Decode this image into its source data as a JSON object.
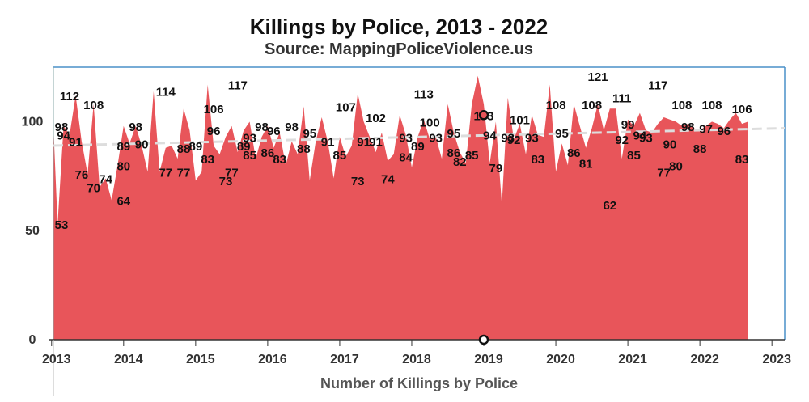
{
  "chart_data": {
    "type": "area",
    "title": "Killings by Police, 2013 - 2022",
    "subtitle": "Source: MappingPoliceViolence.us",
    "xlabel": "Number of Killings by Police",
    "ylabel": "",
    "x_ticks": [
      "2013",
      "2014",
      "2015",
      "2016",
      "2017",
      "2018",
      "2019",
      "2020",
      "2021",
      "2022",
      "2023"
    ],
    "y_ticks": [
      0,
      50,
      100
    ],
    "ylim": [
      0,
      125
    ],
    "xlim": [
      "2013-01",
      "2023-03"
    ],
    "grid": false,
    "trendline": {
      "style": "dashed",
      "color": "#dddddd",
      "start": 89,
      "end": 97
    },
    "series": [
      {
        "color": "#e8555a",
        "x": [
          "2013-01",
          "2013-02",
          "2013-03",
          "2013-04",
          "2013-05",
          "2013-06",
          "2013-07",
          "2013-08",
          "2013-09",
          "2013-10",
          "2013-11",
          "2013-12",
          "2014-01",
          "2014-02",
          "2014-03",
          "2014-04",
          "2014-05",
          "2014-06",
          "2014-07",
          "2014-08",
          "2014-09",
          "2014-10",
          "2014-11",
          "2014-12",
          "2015-01",
          "2015-02",
          "2015-03",
          "2015-04",
          "2015-05",
          "2015-06",
          "2015-07",
          "2015-08",
          "2015-09",
          "2015-10",
          "2015-11",
          "2015-12",
          "2016-01",
          "2016-02",
          "2016-03",
          "2016-04",
          "2016-05",
          "2016-06",
          "2016-07",
          "2016-08",
          "2016-09",
          "2016-10",
          "2016-11",
          "2016-12",
          "2017-01",
          "2017-02",
          "2017-03",
          "2017-04",
          "2017-05",
          "2017-06",
          "2017-07",
          "2017-08",
          "2017-09",
          "2017-10",
          "2017-11",
          "2017-12",
          "2018-01",
          "2018-02",
          "2018-03",
          "2018-04",
          "2018-05",
          "2018-06",
          "2018-07",
          "2018-08",
          "2018-09",
          "2018-10",
          "2018-11",
          "2018-12",
          "2019-01",
          "2019-02",
          "2019-03",
          "2019-04",
          "2019-05",
          "2019-06",
          "2019-07",
          "2019-08",
          "2019-09",
          "2019-10",
          "2019-11",
          "2019-12",
          "2020-01",
          "2020-02",
          "2020-03",
          "2020-04",
          "2020-05",
          "2020-06",
          "2020-07",
          "2020-08",
          "2020-09",
          "2020-10",
          "2020-11",
          "2020-12",
          "2021-01",
          "2021-02",
          "2021-03",
          "2021-04",
          "2021-05",
          "2021-06",
          "2021-07",
          "2021-08",
          "2021-09",
          "2021-10",
          "2021-11",
          "2021-12",
          "2022-01",
          "2022-02",
          "2022-03",
          "2022-04",
          "2022-05",
          "2022-06",
          "2022-07",
          "2022-08",
          "2022-09"
        ],
        "values": [
          98,
          53,
          98,
          94,
          112,
          91,
          76,
          108,
          70,
          74,
          64,
          80,
          98,
          90,
          98,
          89,
          77,
          114,
          77,
          88,
          89,
          83,
          106,
          96,
          73,
          77,
          117,
          89,
          85,
          93,
          98,
          86,
          96,
          100,
          83,
          93,
          98,
          88,
          95,
          80,
          91,
          85,
          107,
          73,
          91,
          102,
          91,
          74,
          93,
          84,
          89,
          113,
          100,
          93,
          86,
          95,
          82,
          85,
          103,
          94,
          79,
          93,
          101,
          92,
          93,
          83,
          108,
          95,
          86,
          81,
          108,
          121,
          108,
          81,
          100,
          62,
          111,
          92,
          99,
          85,
          103,
          94,
          93,
          117,
          77,
          90,
          80,
          108,
          98,
          88,
          97,
          108,
          96,
          106,
          106,
          83,
          101,
          98,
          104,
          96,
          95,
          99,
          102,
          101,
          100,
          98,
          99,
          97,
          96,
          98,
          100,
          99,
          97,
          101,
          104,
          99,
          100
        ]
      }
    ],
    "data_labels": [
      {
        "x": "2013-01",
        "label": "53"
      },
      {
        "x": "2013-02",
        "label": "98"
      },
      {
        "x": "2013-03",
        "label": "94"
      },
      {
        "x": "2013-04",
        "label": "112"
      },
      {
        "x": "2013-05",
        "label": "91"
      },
      {
        "x": "2013-06",
        "label": "76"
      },
      {
        "x": "2013-08",
        "label": "108"
      },
      {
        "x": "2013-08",
        "label": "70"
      },
      {
        "x": "2013-10",
        "label": "74"
      },
      {
        "x": "2014-01",
        "label": "64"
      },
      {
        "x": "2014-01",
        "label": "80"
      },
      {
        "x": "2014-01",
        "label": "89"
      },
      {
        "x": "2014-03",
        "label": "98"
      },
      {
        "x": "2014-04",
        "label": "90"
      },
      {
        "x": "2014-08",
        "label": "114"
      },
      {
        "x": "2014-08",
        "label": "77"
      },
      {
        "x": "2014-11",
        "label": "88"
      },
      {
        "x": "2014-11",
        "label": "77"
      },
      {
        "x": "2015-01",
        "label": "89"
      },
      {
        "x": "2015-03",
        "label": "83"
      },
      {
        "x": "2015-04",
        "label": "106"
      },
      {
        "x": "2015-04",
        "label": "96"
      },
      {
        "x": "2015-06",
        "label": "73"
      },
      {
        "x": "2015-07",
        "label": "77"
      },
      {
        "x": "2015-08",
        "label": "117"
      },
      {
        "x": "2015-09",
        "label": "89"
      },
      {
        "x": "2015-10",
        "label": "93"
      },
      {
        "x": "2015-10",
        "label": "85"
      },
      {
        "x": "2015-12",
        "label": "98"
      },
      {
        "x": "2016-01",
        "label": "86"
      },
      {
        "x": "2016-02",
        "label": "96"
      },
      {
        "x": "2016-03",
        "label": "83"
      },
      {
        "x": "2016-05",
        "label": "98"
      },
      {
        "x": "2016-07",
        "label": "88"
      },
      {
        "x": "2016-08",
        "label": "95"
      },
      {
        "x": "2016-11",
        "label": "91"
      },
      {
        "x": "2017-01",
        "label": "85"
      },
      {
        "x": "2017-02",
        "label": "107"
      },
      {
        "x": "2017-04",
        "label": "73"
      },
      {
        "x": "2017-05",
        "label": "91"
      },
      {
        "x": "2017-07",
        "label": "91"
      },
      {
        "x": "2017-07",
        "label": "102"
      },
      {
        "x": "2017-09",
        "label": "74"
      },
      {
        "x": "2017-12",
        "label": "93"
      },
      {
        "x": "2017-12",
        "label": "84"
      },
      {
        "x": "2018-02",
        "label": "89"
      },
      {
        "x": "2018-03",
        "label": "113"
      },
      {
        "x": "2018-04",
        "label": "100"
      },
      {
        "x": "2018-05",
        "label": "93"
      },
      {
        "x": "2018-08",
        "label": "86"
      },
      {
        "x": "2018-08",
        "label": "95"
      },
      {
        "x": "2018-09",
        "label": "82"
      },
      {
        "x": "2018-11",
        "label": "85"
      },
      {
        "x": "2019-01",
        "label": "103"
      },
      {
        "x": "2019-02",
        "label": "94"
      },
      {
        "x": "2019-03",
        "label": "79"
      },
      {
        "x": "2019-05",
        "label": "93"
      },
      {
        "x": "2019-06",
        "label": "92"
      },
      {
        "x": "2019-07",
        "label": "101"
      },
      {
        "x": "2019-09",
        "label": "93"
      },
      {
        "x": "2019-10",
        "label": "83"
      },
      {
        "x": "2020-01",
        "label": "108"
      },
      {
        "x": "2020-02",
        "label": "95"
      },
      {
        "x": "2020-04",
        "label": "86"
      },
      {
        "x": "2020-06",
        "label": "81"
      },
      {
        "x": "2020-07",
        "label": "108"
      },
      {
        "x": "2020-08",
        "label": "121"
      },
      {
        "x": "2020-10",
        "label": "62"
      },
      {
        "x": "2020-12",
        "label": "111"
      },
      {
        "x": "2020-12",
        "label": "92"
      },
      {
        "x": "2021-01",
        "label": "99"
      },
      {
        "x": "2021-02",
        "label": "85"
      },
      {
        "x": "2021-03",
        "label": "94"
      },
      {
        "x": "2021-04",
        "label": "93"
      },
      {
        "x": "2021-06",
        "label": "117"
      },
      {
        "x": "2021-07",
        "label": "77"
      },
      {
        "x": "2021-08",
        "label": "90"
      },
      {
        "x": "2021-09",
        "label": "80"
      },
      {
        "x": "2021-10",
        "label": "108"
      },
      {
        "x": "2021-11",
        "label": "98"
      },
      {
        "x": "2022-01",
        "label": "88"
      },
      {
        "x": "2022-02",
        "label": "97"
      },
      {
        "x": "2022-03",
        "label": "108"
      },
      {
        "x": "2022-05",
        "label": "96"
      },
      {
        "x": "2022-08",
        "label": "106"
      },
      {
        "x": "2022-08",
        "label": "83"
      }
    ],
    "markers": [
      {
        "x": "2019-01",
        "y": 103
      },
      {
        "x": "2019-01",
        "y": 0
      }
    ]
  }
}
